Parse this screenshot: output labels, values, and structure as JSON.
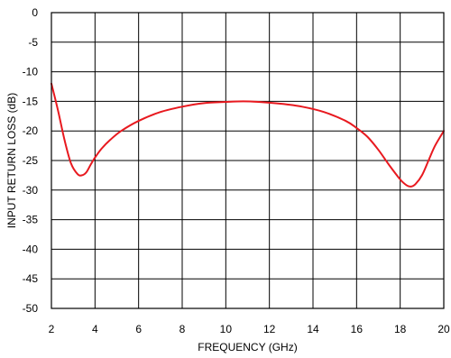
{
  "chart_data": {
    "type": "line",
    "title": "",
    "xlabel": "FREQUENCY (GHz)",
    "ylabel": "INPUT RETURN LOSS (dB)",
    "xlim": [
      2,
      20
    ],
    "ylim": [
      -50,
      0
    ],
    "xticks": [
      2,
      4,
      6,
      8,
      10,
      12,
      14,
      16,
      18,
      20
    ],
    "yticks": [
      0,
      -5,
      -10,
      -15,
      -20,
      -25,
      -30,
      -35,
      -40,
      -45,
      -50
    ],
    "grid": true,
    "legend": "none",
    "series": [
      {
        "color": "#e8191f",
        "x": [
          2.0,
          2.3,
          2.6,
          2.9,
          3.2,
          3.4,
          3.6,
          3.8,
          4.0,
          4.3,
          4.7,
          5.2,
          6.0,
          7.0,
          8.0,
          9.0,
          10.0,
          10.8,
          11.5,
          12.5,
          13.5,
          14.5,
          15.5,
          16.0,
          16.5,
          17.0,
          17.5,
          18.0,
          18.3,
          18.5,
          18.7,
          19.0,
          19.3,
          19.6,
          20.0
        ],
        "y": [
          -12.0,
          -16.5,
          -21.5,
          -25.5,
          -27.3,
          -27.5,
          -27.0,
          -25.7,
          -24.5,
          -23.0,
          -21.5,
          -20.0,
          -18.3,
          -16.8,
          -15.9,
          -15.3,
          -15.1,
          -15.0,
          -15.1,
          -15.4,
          -15.9,
          -16.8,
          -18.3,
          -19.5,
          -21.0,
          -23.2,
          -25.8,
          -28.2,
          -29.2,
          -29.4,
          -29.0,
          -27.5,
          -25.0,
          -22.5,
          -20.0
        ]
      }
    ]
  }
}
